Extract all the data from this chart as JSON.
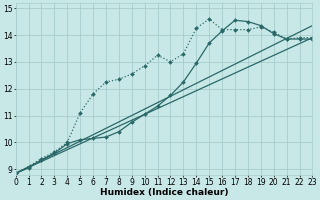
{
  "background_color": "#c8e8e8",
  "grid_color": "#a8cccc",
  "line_color": "#2a6868",
  "xlabel": "Humidex (Indice chaleur)",
  "xlim": [
    0,
    23
  ],
  "ylim": [
    8.8,
    15.2
  ],
  "yticks": [
    9,
    10,
    11,
    12,
    13,
    14,
    15
  ],
  "xticks": [
    0,
    1,
    2,
    3,
    4,
    5,
    6,
    7,
    8,
    9,
    10,
    11,
    12,
    13,
    14,
    15,
    16,
    17,
    18,
    19,
    20,
    21,
    22,
    23
  ],
  "series": [
    {
      "x": [
        0,
        1,
        2,
        3,
        4,
        5,
        6,
        7,
        8,
        9,
        10,
        11,
        12,
        13,
        14,
        15,
        16,
        17,
        18,
        19,
        20,
        21,
        22,
        23
      ],
      "y": [
        8.85,
        9.1,
        9.4,
        9.65,
        10.0,
        11.1,
        11.8,
        12.25,
        12.35,
        12.55,
        12.85,
        13.25,
        13.0,
        13.3,
        14.25,
        14.6,
        14.2,
        14.2,
        14.2,
        14.3,
        14.1,
        13.85,
        13.9,
        13.9
      ],
      "linestyle": ":",
      "linewidth": 0.9,
      "marker": "D",
      "markersize": 2.0
    },
    {
      "x": [
        0,
        1,
        2,
        3,
        4,
        5,
        6,
        7,
        8,
        9,
        10,
        11,
        12,
        13,
        14,
        15,
        16,
        17,
        18,
        19,
        20,
        21,
        22,
        23
      ],
      "y": [
        8.85,
        9.05,
        9.35,
        9.6,
        9.95,
        10.1,
        10.15,
        10.2,
        10.4,
        10.75,
        11.05,
        11.35,
        11.75,
        12.25,
        12.95,
        13.7,
        14.15,
        14.55,
        14.5,
        14.35,
        14.05,
        13.85,
        13.85,
        13.85
      ],
      "linestyle": "-",
      "linewidth": 0.9,
      "marker": "D",
      "markersize": 2.0
    },
    {
      "x": [
        0,
        23
      ],
      "y": [
        8.85,
        13.9
      ],
      "linestyle": "-",
      "linewidth": 0.9,
      "marker": null,
      "markersize": 0
    },
    {
      "x": [
        0,
        23
      ],
      "y": [
        8.85,
        14.35
      ],
      "linestyle": "-",
      "linewidth": 0.9,
      "marker": null,
      "markersize": 0
    }
  ],
  "xlabel_fontsize": 6.5,
  "tick_fontsize": 5.5
}
